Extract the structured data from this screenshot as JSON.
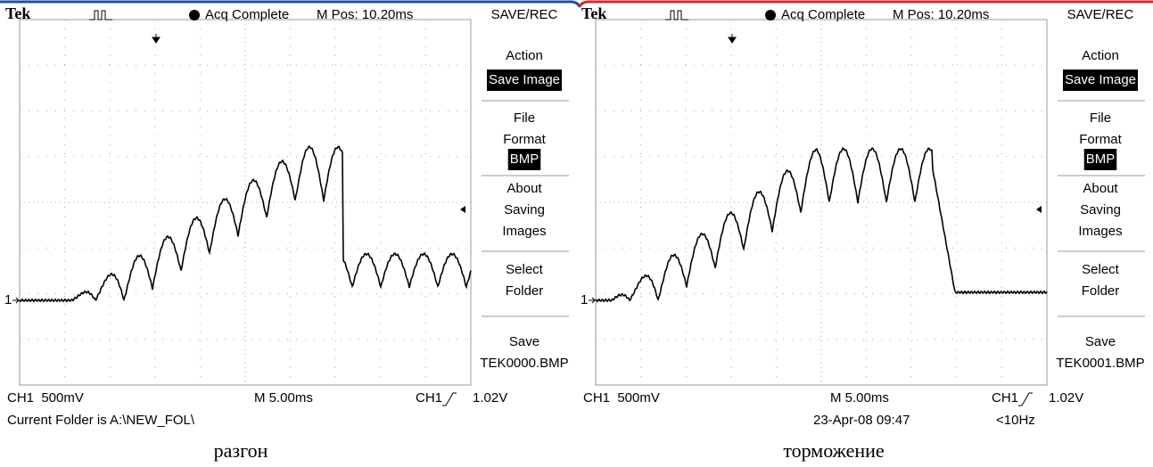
{
  "screens": [
    {
      "brand": "Tek",
      "status": "Acq Complete",
      "position": "M Pos: 10.20ms",
      "menu_title": "SAVE/REC",
      "menu": [
        {
          "lines": [
            "Action"
          ],
          "value": "Save Image"
        },
        {
          "lines": [
            "File",
            "Format"
          ],
          "value": "BMP"
        },
        {
          "lines": [
            "About",
            "Saving",
            "Images"
          ]
        },
        {
          "lines": [
            "Select",
            "Folder"
          ]
        },
        {
          "lines": [
            "Save"
          ],
          "value": "TEK0000.BMP"
        }
      ],
      "channel_marker": "1",
      "ch_scale": "CH1  500mV",
      "timebase": "M 5.00ms",
      "trigger_source": "CH1",
      "trigger_level": "1.02V",
      "messages": [
        "Current Folder is A:\\NEW_FOL\\"
      ],
      "caption": "разгон"
    },
    {
      "brand": "Tek",
      "status": "Acq Complete",
      "position": "M Pos: 10.20ms",
      "menu_title": "SAVE/REC",
      "menu": [
        {
          "lines": [
            "Action"
          ],
          "value": "Save Image"
        },
        {
          "lines": [
            "File",
            "Format"
          ],
          "value": "BMP"
        },
        {
          "lines": [
            "About",
            "Saving",
            "Images"
          ]
        },
        {
          "lines": [
            "Select",
            "Folder"
          ]
        },
        {
          "lines": [
            "Save"
          ],
          "value": "TEK0001.BMP"
        }
      ],
      "channel_marker": "1",
      "ch_scale": "CH1  500mV",
      "timebase": "M 5.00ms",
      "trigger_source": "CH1",
      "trigger_level": "1.02V",
      "messages": [
        "23-Apr-08 09:47",
        "<10Hz"
      ],
      "caption": "торможение"
    }
  ]
}
